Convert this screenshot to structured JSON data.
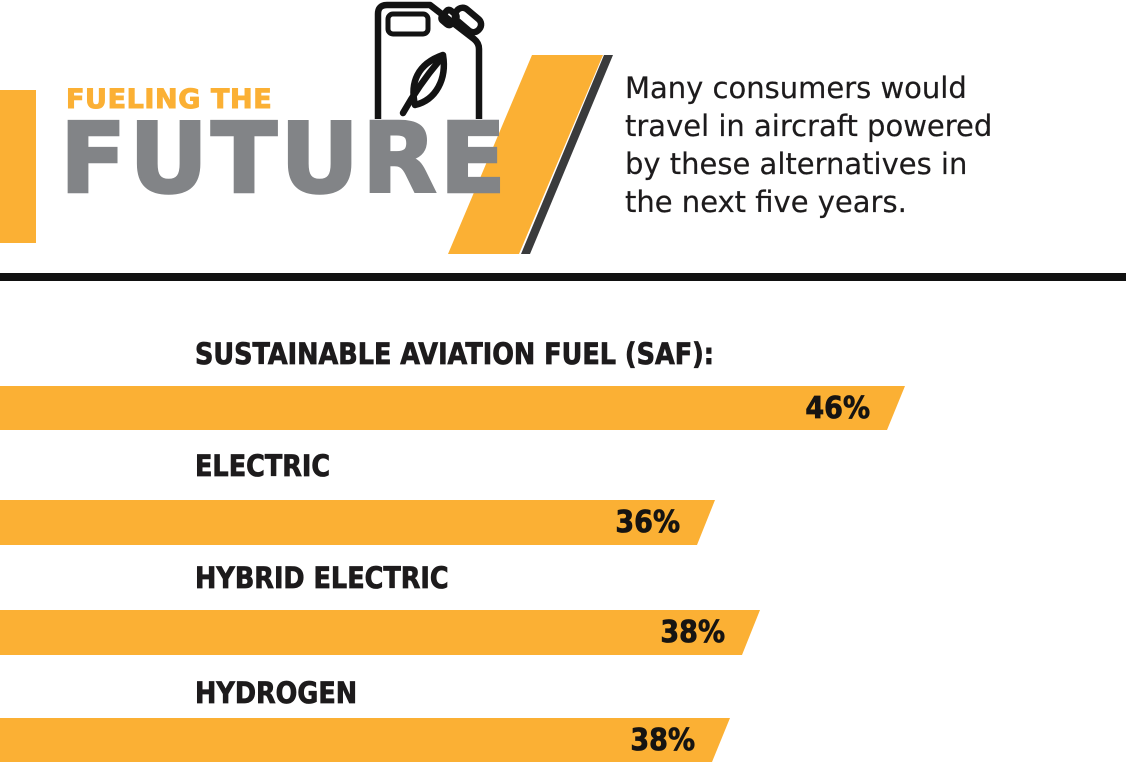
{
  "header": {
    "kicker": "FUELING THE",
    "title": "FUTURE",
    "description": "Many consumers would\ntravel in aircraft powered\nby these alternatives in\nthe next five years.",
    "icon": "fuel-canister-with-leaf"
  },
  "colors": {
    "yellow": "#FBB034",
    "gray": "#828487",
    "dark_slash": "#3A3B3C",
    "ink": "#1D1B1C"
  },
  "chart_data": {
    "type": "bar",
    "orientation": "horizontal",
    "categories": [
      "SUSTAINABLE AVIATION FUEL (SAF):",
      "ELECTRIC",
      "HYBRID ELECTRIC",
      "HYDROGEN"
    ],
    "values": [
      46,
      36,
      38,
      38
    ],
    "value_labels": [
      "46%",
      "36%",
      "38%",
      "38%"
    ],
    "title": "",
    "xlabel": "",
    "ylabel": "",
    "xlim": [
      0,
      50
    ],
    "grid": false,
    "legend": false,
    "bar_color": "#FBB034",
    "value_label_position": "inside-right"
  }
}
